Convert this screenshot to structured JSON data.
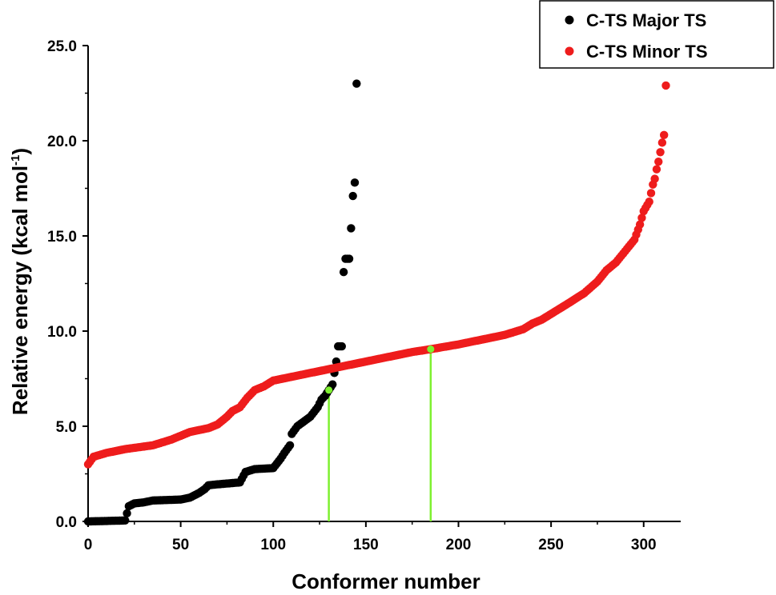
{
  "chart_data": {
    "type": "scatter",
    "title": "",
    "xlabel": "Conformer number",
    "ylabel_main": "Relative energy (kcal mol",
    "ylabel_sup": "-1",
    "ylabel_end": ")",
    "xlim": [
      0,
      320
    ],
    "ylim": [
      0,
      25
    ],
    "xticks": [
      0,
      50,
      100,
      150,
      200,
      250,
      300
    ],
    "yticks": [
      0,
      5,
      10,
      15,
      20,
      25
    ],
    "xtick_labels": [
      "0",
      "50",
      "100",
      "150",
      "200",
      "250",
      "300"
    ],
    "ytick_labels": [
      "0.0",
      "5.0",
      "10.0",
      "15.0",
      "20.0",
      "25.0"
    ],
    "legend_position": "top-right",
    "series": [
      {
        "name": "C-TS Major TS",
        "color": "#000000",
        "anchors": [
          [
            0,
            0
          ],
          [
            20,
            0.05
          ],
          [
            22,
            0.8
          ],
          [
            25,
            0.95
          ],
          [
            30,
            1.0
          ],
          [
            35,
            1.1
          ],
          [
            50,
            1.15
          ],
          [
            55,
            1.25
          ],
          [
            60,
            1.5
          ],
          [
            63,
            1.7
          ],
          [
            65,
            1.9
          ],
          [
            70,
            1.95
          ],
          [
            82,
            2.05
          ],
          [
            85,
            2.6
          ],
          [
            90,
            2.75
          ],
          [
            100,
            2.8
          ],
          [
            104,
            3.3
          ],
          [
            106,
            3.6
          ],
          [
            109,
            4.0
          ],
          [
            110,
            4.6
          ],
          [
            113,
            5.0
          ],
          [
            120,
            5.5
          ],
          [
            124,
            6.0
          ],
          [
            126,
            6.4
          ],
          [
            128,
            6.6
          ],
          [
            130,
            6.9
          ],
          [
            132,
            7.2
          ],
          [
            134,
            8.4
          ],
          [
            135,
            9.2
          ],
          [
            137,
            9.2
          ],
          [
            138,
            13.1
          ],
          [
            139,
            13.8
          ],
          [
            141,
            13.8
          ],
          [
            142,
            15.4
          ],
          [
            143,
            17.1
          ],
          [
            144,
            17.8
          ],
          [
            145,
            23.0
          ]
        ]
      },
      {
        "name": "C-TS Minor TS",
        "color": "#ee1c1c",
        "anchors": [
          [
            0,
            3.0
          ],
          [
            3,
            3.4
          ],
          [
            10,
            3.6
          ],
          [
            20,
            3.8
          ],
          [
            35,
            4.0
          ],
          [
            45,
            4.3
          ],
          [
            55,
            4.7
          ],
          [
            65,
            4.9
          ],
          [
            70,
            5.1
          ],
          [
            75,
            5.5
          ],
          [
            78,
            5.8
          ],
          [
            82,
            6.0
          ],
          [
            86,
            6.5
          ],
          [
            90,
            6.9
          ],
          [
            95,
            7.1
          ],
          [
            100,
            7.4
          ],
          [
            110,
            7.6
          ],
          [
            120,
            7.8
          ],
          [
            130,
            8.0
          ],
          [
            140,
            8.2
          ],
          [
            150,
            8.4
          ],
          [
            160,
            8.6
          ],
          [
            175,
            8.9
          ],
          [
            185,
            9.05
          ],
          [
            200,
            9.3
          ],
          [
            210,
            9.5
          ],
          [
            225,
            9.8
          ],
          [
            235,
            10.1
          ],
          [
            240,
            10.4
          ],
          [
            245,
            10.6
          ],
          [
            250,
            10.9
          ],
          [
            260,
            11.5
          ],
          [
            268,
            12.0
          ],
          [
            275,
            12.6
          ],
          [
            280,
            13.2
          ],
          [
            285,
            13.6
          ],
          [
            290,
            14.2
          ],
          [
            295,
            14.8
          ],
          [
            298,
            15.6
          ],
          [
            300,
            16.3
          ],
          [
            303,
            16.8
          ],
          [
            305,
            17.7
          ],
          [
            306,
            18.0
          ],
          [
            307,
            18.5
          ],
          [
            308,
            18.9
          ],
          [
            309,
            19.4
          ],
          [
            310,
            19.9
          ],
          [
            311,
            20.3
          ],
          [
            312,
            22.9
          ]
        ]
      }
    ],
    "markers": [
      {
        "x": 130,
        "y": 6.9,
        "color": "#7ef030"
      },
      {
        "x": 185,
        "y": 9.05,
        "color": "#7ef030"
      }
    ]
  }
}
